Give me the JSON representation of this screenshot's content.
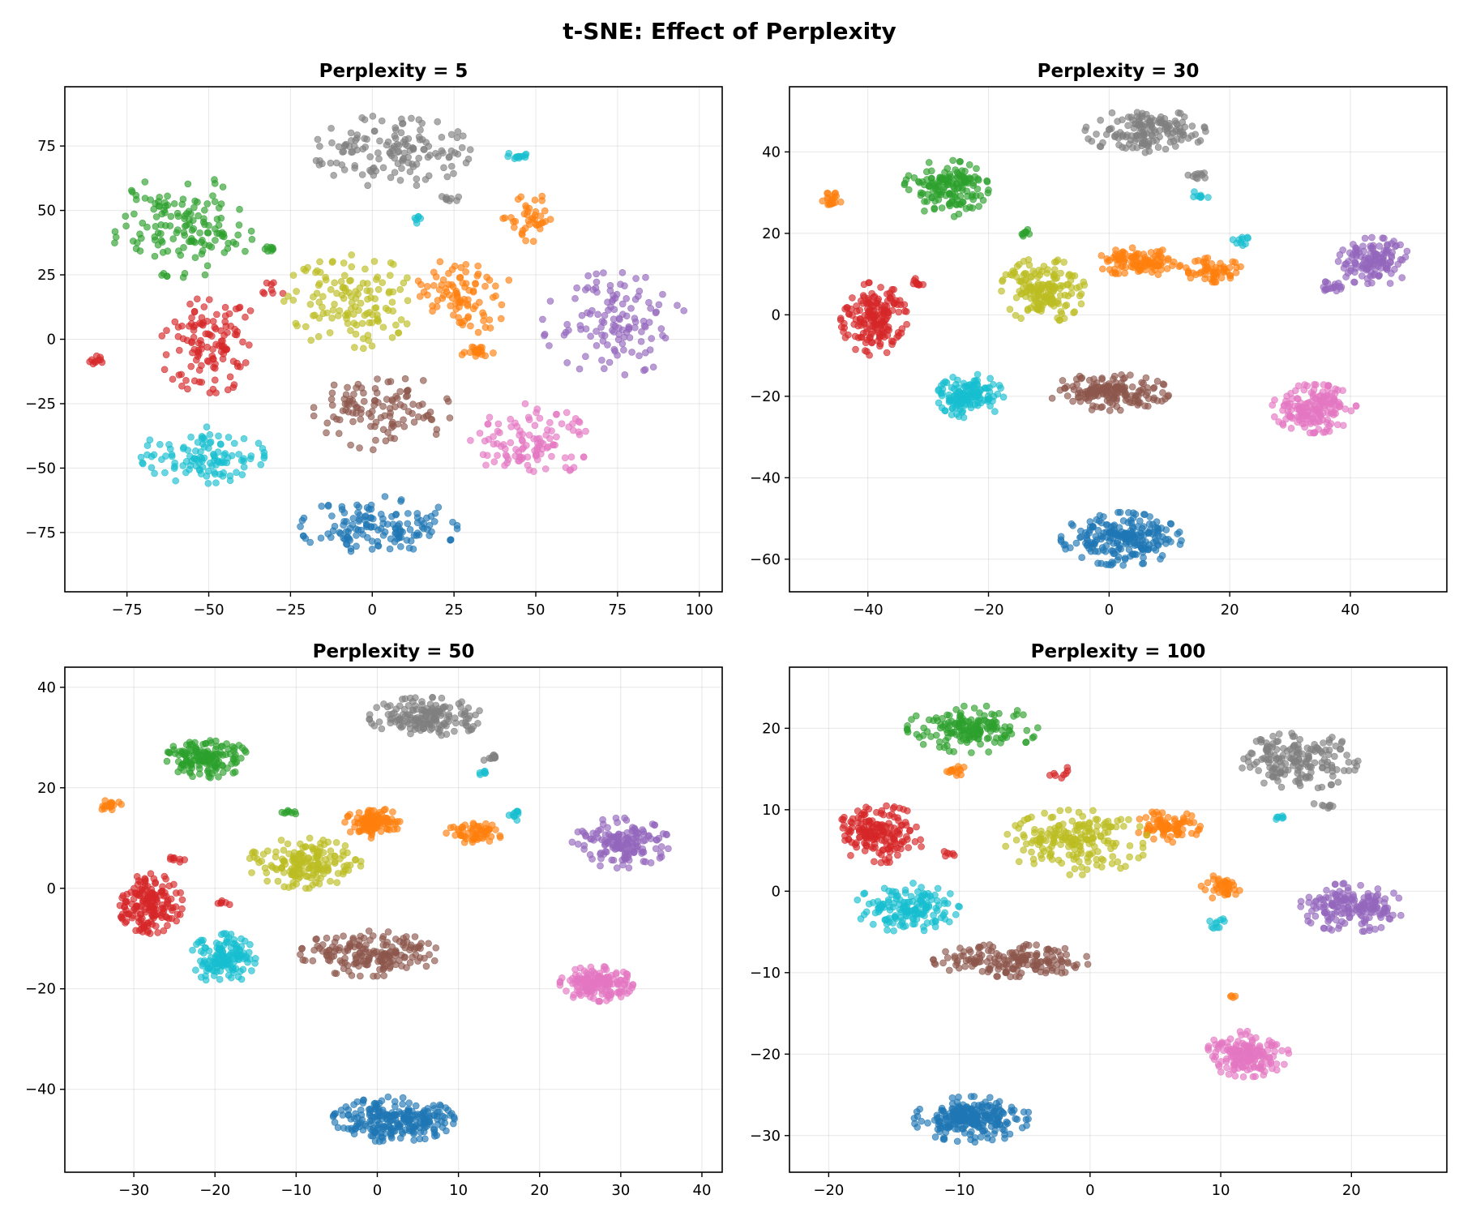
{
  "figure_title": "t-SNE: Effect of Perplexity",
  "colors": {
    "c0": "#1f77b4",
    "c1": "#ff7f0e",
    "c2": "#2ca02c",
    "c3": "#d62728",
    "c4": "#9467bd",
    "c5": "#8c564b",
    "c6": "#e377c2",
    "c7": "#7f7f7f",
    "c8": "#bcbd22",
    "c9": "#17becf"
  },
  "chart_data": [
    {
      "type": "scatter",
      "title": "Perplexity = 5",
      "xlim": [
        -94,
        107
      ],
      "ylim": [
        -98,
        98
      ],
      "xticks": [
        -75,
        -50,
        -25,
        0,
        25,
        50,
        75,
        100
      ],
      "yticks": [
        -75,
        -50,
        -25,
        0,
        25,
        50,
        75
      ],
      "grid": true,
      "seed": 11,
      "clusters": [
        {
          "color": "c0",
          "cx": 2,
          "cy": -73,
          "rx": 24,
          "ry": 12,
          "n": 140
        },
        {
          "color": "c3",
          "cx": -50,
          "cy": -1,
          "rx": 16,
          "ry": 20,
          "n": 120
        },
        {
          "color": "c3",
          "cx": -84,
          "cy": -8,
          "rx": 2.5,
          "ry": 2.5,
          "n": 10
        },
        {
          "color": "c3",
          "cx": -31,
          "cy": 19,
          "rx": 4,
          "ry": 3,
          "n": 8
        },
        {
          "color": "c2",
          "cx": -58,
          "cy": 44,
          "rx": 22,
          "ry": 20,
          "n": 140
        },
        {
          "color": "c2",
          "cx": -31,
          "cy": 35,
          "rx": 2.5,
          "ry": 2,
          "n": 8
        },
        {
          "color": "c9",
          "cx": -52,
          "cy": -45,
          "rx": 19,
          "ry": 11,
          "n": 110
        },
        {
          "color": "c9",
          "cx": 45,
          "cy": 71,
          "rx": 4,
          "ry": 2.5,
          "n": 12
        },
        {
          "color": "c9",
          "cx": 13,
          "cy": 47,
          "rx": 2.5,
          "ry": 2,
          "n": 6
        },
        {
          "color": "c7",
          "cx": 6,
          "cy": 73,
          "rx": 24,
          "ry": 14,
          "n": 140
        },
        {
          "color": "c7",
          "cx": 24,
          "cy": 55,
          "rx": 3,
          "ry": 1.5,
          "n": 8
        },
        {
          "color": "c8",
          "cx": -7,
          "cy": 15,
          "rx": 20,
          "ry": 19,
          "n": 130
        },
        {
          "color": "c1",
          "cx": 28,
          "cy": 17,
          "rx": 15,
          "ry": 15,
          "n": 90
        },
        {
          "color": "c1",
          "cx": 49,
          "cy": 47,
          "rx": 9,
          "ry": 9,
          "n": 40
        },
        {
          "color": "c1",
          "cx": 32,
          "cy": -5,
          "rx": 5,
          "ry": 3.5,
          "n": 22
        },
        {
          "color": "c4",
          "cx": 74,
          "cy": 6,
          "rx": 22,
          "ry": 20,
          "n": 120
        },
        {
          "color": "c5",
          "cx": 3,
          "cy": -28,
          "rx": 21,
          "ry": 15,
          "n": 110
        },
        {
          "color": "c6",
          "cx": 48,
          "cy": -40,
          "rx": 18,
          "ry": 15,
          "n": 110
        }
      ]
    },
    {
      "type": "scatter",
      "title": "Perplexity = 30",
      "xlim": [
        -53,
        56
      ],
      "ylim": [
        -68,
        56
      ],
      "xticks": [
        -40,
        -20,
        0,
        20,
        40
      ],
      "yticks": [
        -60,
        -40,
        -20,
        0,
        20,
        40
      ],
      "grid": true,
      "seed": 23,
      "clusters": [
        {
          "color": "c0",
          "cx": 2,
          "cy": -55,
          "rx": 10,
          "ry": 6.5,
          "n": 220
        },
        {
          "color": "c3",
          "cx": -39,
          "cy": -1,
          "rx": 5.5,
          "ry": 9,
          "n": 170
        },
        {
          "color": "c3",
          "cx": -32,
          "cy": 8,
          "rx": 2,
          "ry": 1.5,
          "n": 10
        },
        {
          "color": "c2",
          "cx": -27,
          "cy": 31,
          "rx": 7,
          "ry": 7,
          "n": 150
        },
        {
          "color": "c2",
          "cx": -14,
          "cy": 20,
          "rx": 1.5,
          "ry": 1,
          "n": 8
        },
        {
          "color": "c1",
          "cx": -46,
          "cy": 28,
          "rx": 2,
          "ry": 2,
          "n": 20
        },
        {
          "color": "c1",
          "cx": 5,
          "cy": 13,
          "rx": 7,
          "ry": 3.5,
          "n": 110
        },
        {
          "color": "c1",
          "cx": 17,
          "cy": 11,
          "rx": 5,
          "ry": 3,
          "n": 60
        },
        {
          "color": "c7",
          "cx": 6,
          "cy": 45,
          "rx": 10,
          "ry": 5.5,
          "n": 150
        },
        {
          "color": "c7",
          "cx": 15,
          "cy": 34,
          "rx": 2,
          "ry": 1,
          "n": 10
        },
        {
          "color": "c9",
          "cx": -23,
          "cy": -20,
          "rx": 5.5,
          "ry": 5.5,
          "n": 140
        },
        {
          "color": "c9",
          "cx": 22,
          "cy": 18,
          "rx": 1.5,
          "ry": 2,
          "n": 10
        },
        {
          "color": "c9",
          "cx": 15,
          "cy": 29,
          "rx": 1.5,
          "ry": 1.5,
          "n": 8
        },
        {
          "color": "c8",
          "cx": -11,
          "cy": 6,
          "rx": 7,
          "ry": 8,
          "n": 170
        },
        {
          "color": "c4",
          "cx": 44,
          "cy": 13,
          "rx": 6,
          "ry": 6,
          "n": 130
        },
        {
          "color": "c4",
          "cx": 37,
          "cy": 7,
          "rx": 2.5,
          "ry": 1.5,
          "n": 18
        },
        {
          "color": "c5",
          "cx": 0,
          "cy": -19,
          "rx": 10,
          "ry": 4.5,
          "n": 160
        },
        {
          "color": "c6",
          "cx": 34,
          "cy": -23,
          "rx": 7,
          "ry": 6,
          "n": 170
        }
      ]
    },
    {
      "type": "scatter",
      "title": "Perplexity = 50",
      "xlim": [
        -38.5,
        42.5
      ],
      "ylim": [
        -56.5,
        44
      ],
      "xticks": [
        -30,
        -20,
        -10,
        0,
        10,
        20,
        30,
        40
      ],
      "yticks": [
        -40,
        -20,
        0,
        20,
        40
      ],
      "grid": true,
      "seed": 37,
      "clusters": [
        {
          "color": "c0",
          "cx": 2,
          "cy": -46,
          "rx": 7.5,
          "ry": 4.5,
          "n": 240
        },
        {
          "color": "c3",
          "cx": -28,
          "cy": -3,
          "rx": 4,
          "ry": 6,
          "n": 170
        },
        {
          "color": "c3",
          "cx": -25,
          "cy": 6,
          "rx": 1.5,
          "ry": 1,
          "n": 8
        },
        {
          "color": "c3",
          "cx": -19,
          "cy": -3,
          "rx": 1,
          "ry": 1,
          "n": 6
        },
        {
          "color": "c2",
          "cx": -21,
          "cy": 26,
          "rx": 5,
          "ry": 4,
          "n": 150
        },
        {
          "color": "c2",
          "cx": -11,
          "cy": 15,
          "rx": 1.2,
          "ry": 0.5,
          "n": 8
        },
        {
          "color": "c1",
          "cx": -33,
          "cy": 16.5,
          "rx": 1.5,
          "ry": 1,
          "n": 18
        },
        {
          "color": "c1",
          "cx": -0.5,
          "cy": 13,
          "rx": 3.5,
          "ry": 3,
          "n": 110
        },
        {
          "color": "c1",
          "cx": 12,
          "cy": 11,
          "rx": 3.5,
          "ry": 2,
          "n": 60
        },
        {
          "color": "c7",
          "cx": 6,
          "cy": 34,
          "rx": 7,
          "ry": 4,
          "n": 160
        },
        {
          "color": "c7",
          "cx": 14,
          "cy": 26,
          "rx": 1.5,
          "ry": 0.7,
          "n": 10
        },
        {
          "color": "c9",
          "cx": -19,
          "cy": -14,
          "rx": 4,
          "ry": 5,
          "n": 140
        },
        {
          "color": "c9",
          "cx": 17,
          "cy": 15,
          "rx": 0.8,
          "ry": 1.5,
          "n": 10
        },
        {
          "color": "c9",
          "cx": 13,
          "cy": 23,
          "rx": 0.8,
          "ry": 0.8,
          "n": 6
        },
        {
          "color": "c8",
          "cx": -9,
          "cy": 5,
          "rx": 7,
          "ry": 5,
          "n": 170
        },
        {
          "color": "c4",
          "cx": 30,
          "cy": 9,
          "rx": 6,
          "ry": 5,
          "n": 160
        },
        {
          "color": "c5",
          "cx": -1,
          "cy": -13,
          "rx": 8.5,
          "ry": 4.5,
          "n": 170
        },
        {
          "color": "c6",
          "cx": 27,
          "cy": -19,
          "rx": 4.5,
          "ry": 3.5,
          "n": 170
        }
      ]
    },
    {
      "type": "scatter",
      "title": "Perplexity = 100",
      "xlim": [
        -23,
        27.3
      ],
      "ylim": [
        -34.5,
        27.5
      ],
      "xticks": [
        -20,
        -10,
        0,
        10,
        20
      ],
      "yticks": [
        -30,
        -20,
        -10,
        0,
        10,
        20
      ],
      "grid": true,
      "seed": 53,
      "clusters": [
        {
          "color": "c0",
          "cx": -9,
          "cy": -28,
          "rx": 4.5,
          "ry": 2.8,
          "n": 230
        },
        {
          "color": "c3",
          "cx": -16,
          "cy": 7,
          "rx": 3.5,
          "ry": 3.5,
          "n": 170
        },
        {
          "color": "c3",
          "cx": -2,
          "cy": 14.5,
          "rx": 1.2,
          "ry": 0.7,
          "n": 8
        },
        {
          "color": "c3",
          "cx": -11,
          "cy": 4.5,
          "rx": 0.8,
          "ry": 0.7,
          "n": 6
        },
        {
          "color": "c2",
          "cx": -9,
          "cy": 20,
          "rx": 5,
          "ry": 3,
          "n": 160
        },
        {
          "color": "c1",
          "cx": -10.5,
          "cy": 14.8,
          "rx": 1.2,
          "ry": 0.6,
          "n": 14
        },
        {
          "color": "c1",
          "cx": 6,
          "cy": 8,
          "rx": 2.5,
          "ry": 2,
          "n": 90
        },
        {
          "color": "c1",
          "cx": 10,
          "cy": 0.5,
          "rx": 1.5,
          "ry": 1.5,
          "n": 40
        },
        {
          "color": "c1",
          "cx": 11,
          "cy": -13,
          "rx": 0.4,
          "ry": 0.3,
          "n": 4
        },
        {
          "color": "c7",
          "cx": 16,
          "cy": 16,
          "rx": 4.5,
          "ry": 3.5,
          "n": 170
        },
        {
          "color": "c7",
          "cx": 18,
          "cy": 10.5,
          "rx": 1,
          "ry": 0.5,
          "n": 8
        },
        {
          "color": "c9",
          "cx": -14,
          "cy": -2,
          "rx": 4,
          "ry": 3,
          "n": 150
        },
        {
          "color": "c9",
          "cx": 9.8,
          "cy": -4,
          "rx": 0.8,
          "ry": 0.8,
          "n": 10
        },
        {
          "color": "c9",
          "cx": 14.5,
          "cy": 9,
          "rx": 0.5,
          "ry": 0.5,
          "n": 6
        },
        {
          "color": "c8",
          "cx": -1,
          "cy": 6,
          "rx": 5.5,
          "ry": 4,
          "n": 190
        },
        {
          "color": "c4",
          "cx": 20,
          "cy": -2,
          "rx": 4,
          "ry": 3,
          "n": 170
        },
        {
          "color": "c5",
          "cx": -6,
          "cy": -8.5,
          "rx": 6,
          "ry": 2,
          "n": 170
        },
        {
          "color": "c6",
          "cx": 12,
          "cy": -20,
          "rx": 3.2,
          "ry": 2.8,
          "n": 170
        }
      ]
    }
  ]
}
